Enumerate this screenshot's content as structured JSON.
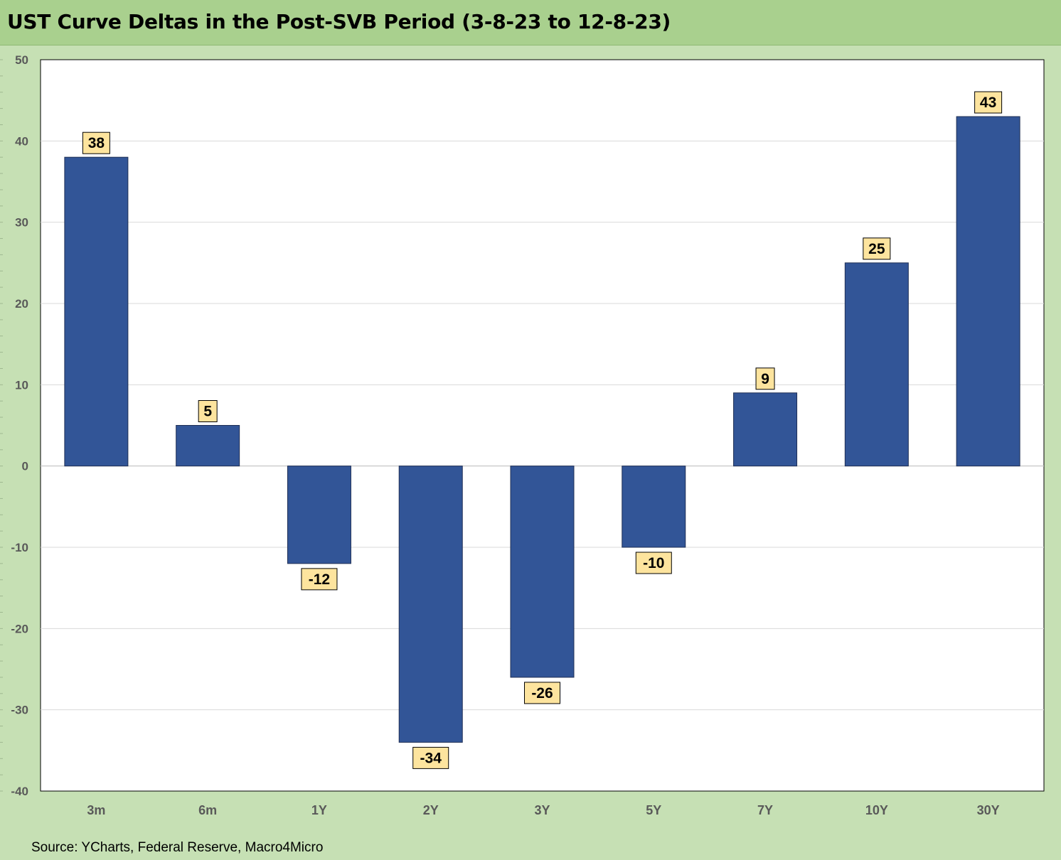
{
  "title": "UST Curve Deltas in the Post-SVB Period (3-8-23 to 12-8-23)",
  "source": "Source: YCharts, Federal Reserve, Macro4Micro",
  "colors": {
    "bar": "#325597",
    "bar_border": "#1f2f55",
    "label_bg": "#fde49e",
    "title_bg": "#a9d08e",
    "frame_bg": "#c6e0b4",
    "plot_bg": "#ffffff",
    "grid": "#d9d9d9"
  },
  "chart_data": {
    "type": "bar",
    "title": "UST Curve Deltas in the Post-SVB Period (3-8-23 to 12-8-23)",
    "xlabel": "",
    "ylabel": "",
    "categories": [
      "3m",
      "6m",
      "1Y",
      "2Y",
      "3Y",
      "5Y",
      "7Y",
      "10Y",
      "30Y"
    ],
    "values": [
      38,
      5,
      -12,
      -34,
      -26,
      -10,
      9,
      25,
      43
    ],
    "ylim": [
      -40,
      50
    ],
    "yticks": [
      50,
      40,
      30,
      20,
      10,
      0,
      -10,
      -20,
      -30,
      -40
    ],
    "grid": true,
    "legend": "none"
  }
}
